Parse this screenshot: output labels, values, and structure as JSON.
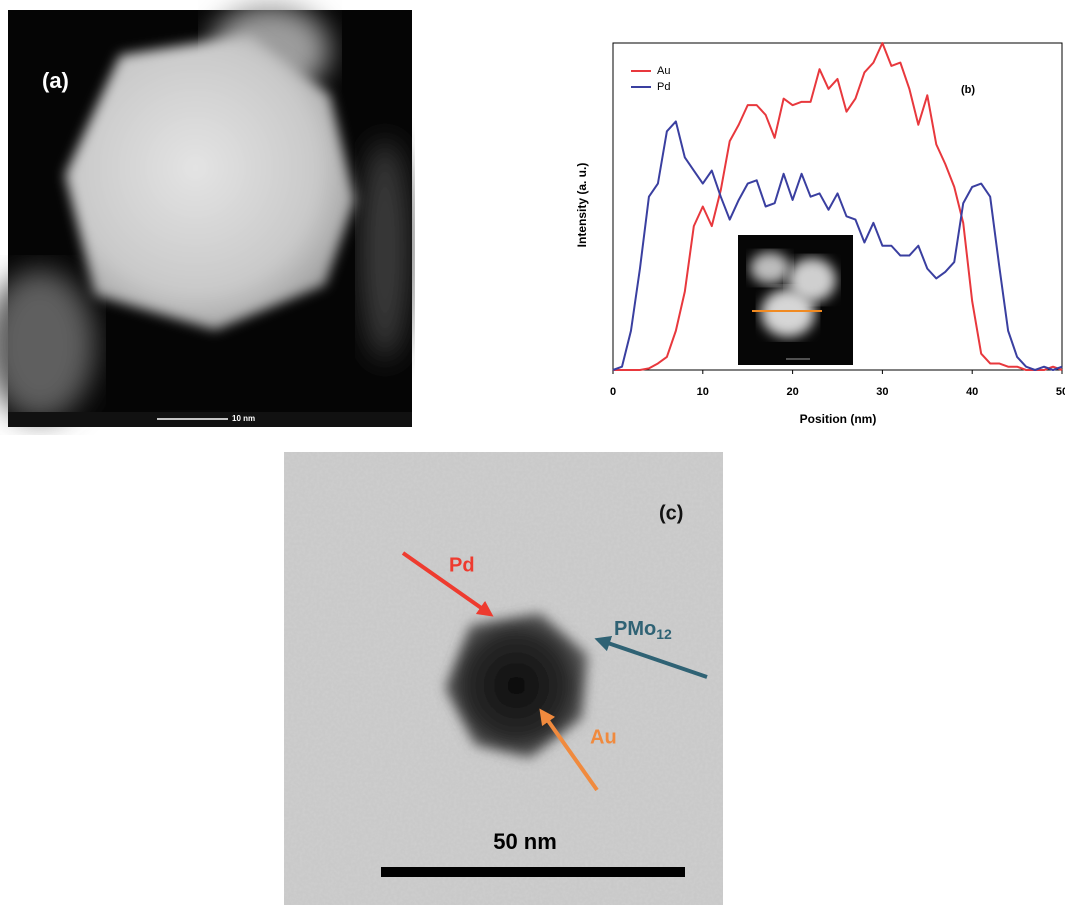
{
  "panels": {
    "a": {
      "label": "(a)",
      "scale_bar": "10 nm"
    },
    "c": {
      "label": "(c)",
      "scale_bar": "50 nm",
      "annotations": [
        {
          "text": "Pd"
        },
        {
          "text": "PMo",
          "subscript": "12"
        },
        {
          "text": "Au"
        }
      ]
    }
  },
  "chart_data": {
    "type": "line",
    "panel_label": "(b)",
    "xlabel": "Position (nm)",
    "ylabel": "Intensity (a. u.)",
    "x": [
      0,
      1,
      2,
      3,
      4,
      5,
      6,
      7,
      8,
      9,
      10,
      11,
      12,
      13,
      14,
      15,
      16,
      17,
      18,
      19,
      20,
      21,
      22,
      23,
      24,
      25,
      26,
      27,
      28,
      29,
      30,
      31,
      32,
      33,
      34,
      35,
      36,
      37,
      38,
      39,
      40,
      41,
      42,
      43,
      44,
      45,
      46,
      47,
      48,
      49,
      50
    ],
    "xlim": [
      0,
      50
    ],
    "xticks": [
      0,
      10,
      20,
      30,
      40,
      50
    ],
    "ylim": [
      0,
      100
    ],
    "legend": "upper left",
    "series": [
      {
        "name": "Au",
        "color": "#e8383d",
        "values": [
          0,
          0,
          0,
          0,
          0.5,
          2,
          4,
          12,
          24,
          44,
          50,
          44,
          55,
          70,
          75,
          81,
          81,
          78,
          71,
          83,
          81,
          82,
          82,
          92,
          86,
          89,
          79,
          83,
          91,
          94,
          100,
          93,
          94,
          86,
          75,
          84,
          69,
          63,
          56,
          45,
          21,
          5,
          2,
          2,
          1,
          1,
          0,
          0,
          0,
          1,
          0
        ]
      },
      {
        "name": "Pd",
        "color": "#3a3fa0",
        "values": [
          0,
          1,
          12,
          31,
          53,
          57,
          73,
          76,
          65,
          61,
          57,
          61,
          53,
          46,
          52,
          57,
          58,
          50,
          51,
          60,
          52,
          60,
          53,
          54,
          49,
          54,
          47,
          46,
          39,
          45,
          38,
          38,
          35,
          35,
          38,
          31,
          28,
          30,
          33,
          51,
          56,
          57,
          53,
          32,
          12,
          4,
          1,
          0,
          1,
          0,
          1
        ]
      }
    ]
  }
}
